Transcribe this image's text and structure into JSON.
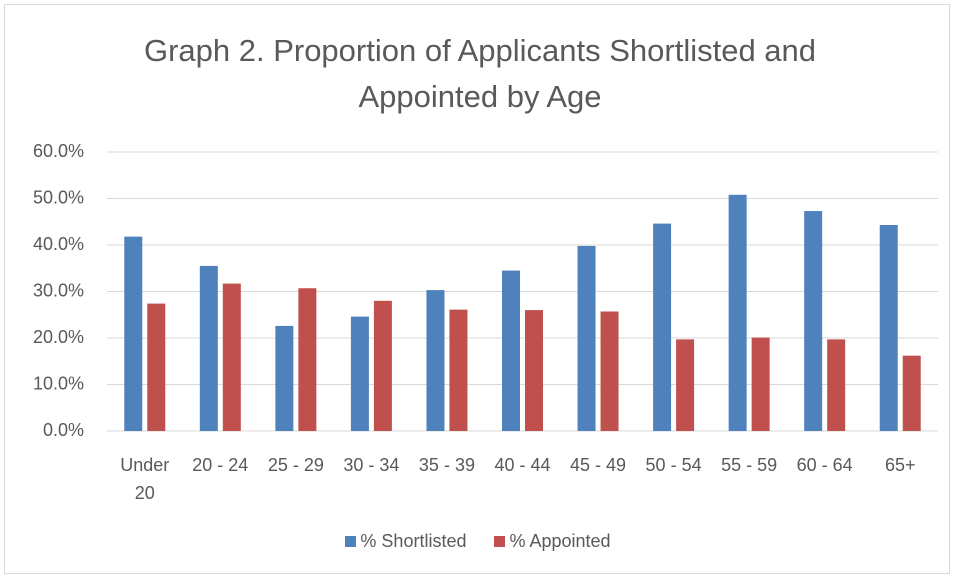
{
  "chart_data": {
    "type": "bar",
    "title": "Graph 2. Proportion of Applicants Shortlisted and Appointed by Age",
    "categories": [
      "Under 20",
      "20 - 24",
      "25 - 29",
      "30 - 34",
      "35 - 39",
      "40 - 44",
      "45 - 49",
      "50 - 54",
      "55 - 59",
      "60 - 64",
      "65+"
    ],
    "series": [
      {
        "name": "% Shortlisted",
        "color": "#4f81bd",
        "values": [
          41.8,
          35.5,
          22.6,
          24.6,
          30.3,
          34.5,
          39.8,
          44.6,
          50.8,
          47.3,
          44.3
        ]
      },
      {
        "name": "% Appointed",
        "color": "#c0504d",
        "values": [
          27.4,
          31.7,
          30.7,
          28.0,
          26.1,
          26.0,
          25.7,
          19.7,
          20.1,
          19.7,
          16.2
        ]
      }
    ],
    "ylim": [
      0,
      60
    ],
    "yticks": [
      {
        "value": 0,
        "label": "0.0%"
      },
      {
        "value": 10,
        "label": "10.0%"
      },
      {
        "value": 20,
        "label": "20.0%"
      },
      {
        "value": 30,
        "label": "30.0%"
      },
      {
        "value": 40,
        "label": "40.0%"
      },
      {
        "value": 50,
        "label": "50.0%"
      },
      {
        "value": 60,
        "label": "60.0%"
      }
    ],
    "grid": true,
    "legend": "bottom"
  }
}
